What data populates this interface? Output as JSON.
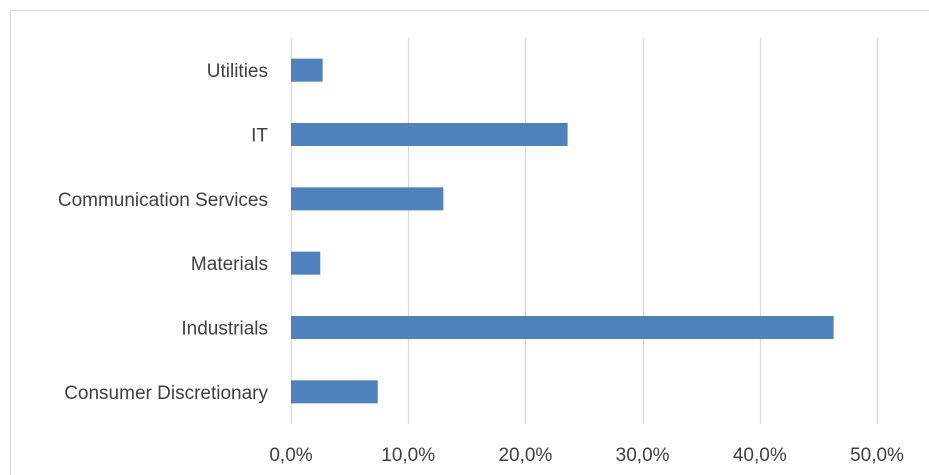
{
  "chart_data": {
    "type": "bar",
    "orientation": "horizontal",
    "categories": [
      "Utilities",
      "IT",
      "Communication Services",
      "Materials",
      "Industrials",
      "Consumer Discretionary"
    ],
    "values": [
      2.7,
      23.6,
      13.0,
      2.5,
      46.3,
      7.4
    ],
    "xlim": [
      0,
      50
    ],
    "xticks": [
      0,
      10,
      20,
      30,
      40,
      50
    ],
    "xtick_labels": [
      "0,0%",
      "10,0%",
      "20,0%",
      "30,0%",
      "40,0%",
      "50,0%"
    ],
    "grid": true,
    "legend": "none",
    "colors": {
      "bar": "#4f81bd",
      "grid": "#d9d9d9",
      "border": "#d9d9d9",
      "text": "#404040"
    }
  }
}
